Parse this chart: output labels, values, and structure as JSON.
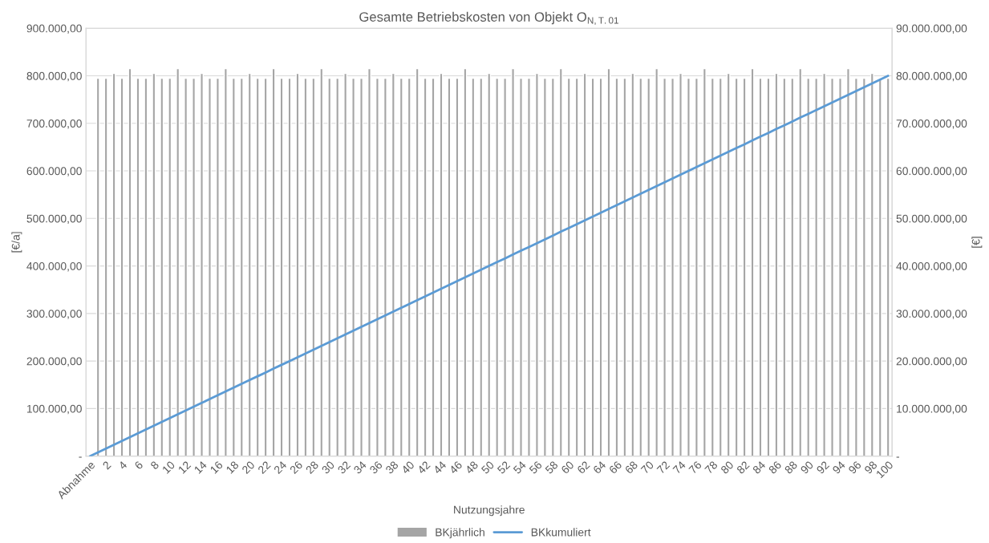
{
  "chart_data": {
    "type": "bar",
    "title": "Gesamte Betriebskosten von Objekt O$_{N,T.01}$",
    "xlabel": "Nutzungsjahre",
    "ylabel": "[€/a]",
    "y2label": "[€]",
    "categories": [
      "Abnahme",
      null,
      "2",
      null,
      "4",
      null,
      "6",
      null,
      "8",
      null,
      "10",
      null,
      "12",
      null,
      "14",
      null,
      "16",
      null,
      "18",
      null,
      "20",
      null,
      "22",
      null,
      "24",
      null,
      "26",
      null,
      "28",
      null,
      "30",
      null,
      "32",
      null,
      "34",
      null,
      "36",
      null,
      "38",
      null,
      "40",
      null,
      "42",
      null,
      "44",
      null,
      "46",
      null,
      "48",
      null,
      "50",
      null,
      "52",
      null,
      "54",
      null,
      "56",
      null,
      "58",
      null,
      "60",
      null,
      "62",
      null,
      "64",
      null,
      "66",
      null,
      "68",
      null,
      "70",
      null,
      "72",
      null,
      "74",
      null,
      "76",
      null,
      "78",
      null,
      "80",
      null,
      "82",
      null,
      "84",
      null,
      "86",
      null,
      "88",
      null,
      "90",
      null,
      "92",
      null,
      "94",
      null,
      "96",
      null,
      "98",
      null,
      "100"
    ],
    "series": [
      {
        "name": "BKjährlich",
        "color": "#a5a5a5",
        "values": [
          null,
          795000,
          795000,
          805000,
          795000,
          815000,
          795000,
          795000,
          805000,
          795000,
          795000,
          815000,
          795000,
          795000,
          805000,
          795000,
          795000,
          815000,
          795000,
          795000,
          805000,
          795000,
          795000,
          815000,
          795000,
          795000,
          805000,
          795000,
          795000,
          815000,
          795000,
          795000,
          805000,
          795000,
          795000,
          815000,
          795000,
          795000,
          805000,
          795000,
          795000,
          815000,
          795000,
          795000,
          805000,
          795000,
          795000,
          815000,
          795000,
          795000,
          805000,
          795000,
          795000,
          815000,
          795000,
          795000,
          805000,
          795000,
          795000,
          815000,
          795000,
          795000,
          805000,
          795000,
          795000,
          815000,
          795000,
          795000,
          805000,
          795000,
          795000,
          815000,
          795000,
          795000,
          805000,
          795000,
          795000,
          815000,
          795000,
          795000,
          805000,
          795000,
          795000,
          815000,
          795000,
          795000,
          805000,
          795000,
          795000,
          815000,
          795000,
          795000,
          805000,
          795000,
          795000,
          815000,
          795000,
          795000,
          805000,
          795000,
          795000
        ]
      },
      {
        "name": "BKkumuliert",
        "type": "line",
        "axis": "y2",
        "color": "#5b9bd5",
        "values": [
          0,
          795000,
          1590000,
          2395000,
          3190000,
          4005000,
          4800000,
          5595000,
          6400000,
          7195000,
          7990000,
          8805000,
          9600000,
          10395000,
          11200000,
          11995000,
          12790000,
          13605000,
          14400000,
          15195000,
          16000000,
          16795000,
          17590000,
          18405000,
          19200000,
          19995000,
          20800000,
          21595000,
          22390000,
          23205000,
          24000000,
          24795000,
          25600000,
          26395000,
          27190000,
          28005000,
          28800000,
          29595000,
          30400000,
          31195000,
          31990000,
          32805000,
          33600000,
          34395000,
          35200000,
          35995000,
          36790000,
          37605000,
          38400000,
          39195000,
          40000000,
          40795000,
          41590000,
          42405000,
          43200000,
          43995000,
          44800000,
          45595000,
          46390000,
          47205000,
          48000000,
          48795000,
          49600000,
          50395000,
          51190000,
          52005000,
          52800000,
          53595000,
          54400000,
          55195000,
          55990000,
          56805000,
          57600000,
          58395000,
          59200000,
          59995000,
          60790000,
          61605000,
          62400000,
          63195000,
          64000000,
          64795000,
          65590000,
          66405000,
          67200000,
          67995000,
          68800000,
          69595000,
          70390000,
          71205000,
          72000000,
          72795000,
          73600000,
          74395000,
          75190000,
          76005000,
          76800000,
          77595000,
          78400000,
          79195000,
          79990000
        ]
      }
    ],
    "ylim": [
      0,
      900000
    ],
    "yticks": [
      {
        "value": 0,
        "label": "-"
      },
      {
        "value": 100000,
        "label": "100.000,00"
      },
      {
        "value": 200000,
        "label": "200.000,00"
      },
      {
        "value": 300000,
        "label": "300.000,00"
      },
      {
        "value": 400000,
        "label": "400.000,00"
      },
      {
        "value": 500000,
        "label": "500.000,00"
      },
      {
        "value": 600000,
        "label": "600.000,00"
      },
      {
        "value": 700000,
        "label": "700.000,00"
      },
      {
        "value": 800000,
        "label": "800.000,00"
      },
      {
        "value": 900000,
        "label": "900.000,00"
      }
    ],
    "y2lim": [
      0,
      90000000
    ],
    "y2ticks": [
      {
        "value": 0,
        "label": "-"
      },
      {
        "value": 10000000,
        "label": "10.000.000,00"
      },
      {
        "value": 20000000,
        "label": "20.000.000,00"
      },
      {
        "value": 30000000,
        "label": "30.000.000,00"
      },
      {
        "value": 40000000,
        "label": "40.000.000,00"
      },
      {
        "value": 50000000,
        "label": "50.000.000,00"
      },
      {
        "value": 60000000,
        "label": "60.000.000,00"
      },
      {
        "value": 70000000,
        "label": "70.000.000,00"
      },
      {
        "value": 80000000,
        "label": "80.000.000,00"
      },
      {
        "value": 90000000,
        "label": "90.000.000,00"
      }
    ],
    "grid": "y",
    "legend": "bottom",
    "marker": "none",
    "line_style": "solid"
  }
}
